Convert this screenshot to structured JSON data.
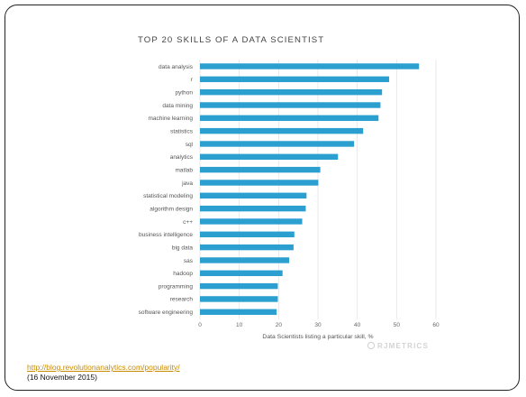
{
  "chart_data": {
    "type": "bar",
    "orientation": "horizontal",
    "title": "TOP 20 SKILLS OF A DATA SCIENTIST",
    "xlabel": "Data Scientists listing a particular skill, %",
    "ylabel": "",
    "categories": [
      "data analysis",
      "r",
      "python",
      "data mining",
      "machine learning",
      "statistics",
      "sql",
      "analytics",
      "matlab",
      "java",
      "statistical modeling",
      "algorithm design",
      "c++",
      "business intelligence",
      "big data",
      "sas",
      "hadoop",
      "programming",
      "research",
      "software engineering"
    ],
    "values": [
      55.7,
      48.1,
      46.3,
      45.9,
      45.4,
      41.5,
      39.2,
      35.1,
      30.6,
      30.1,
      27.1,
      26.9,
      26.0,
      24.0,
      23.8,
      22.7,
      21.0,
      19.8,
      19.8,
      19.5
    ],
    "xlim": [
      0,
      60
    ],
    "xticks": [
      0,
      10,
      20,
      30,
      40,
      50,
      60
    ],
    "grid": true,
    "bar_color": "#2a9fd0",
    "watermark": "RJMETRICS"
  },
  "source": {
    "url": "http://blog.revolutionanalytics.com/popularity/",
    "date": "(16 November 2015)"
  }
}
